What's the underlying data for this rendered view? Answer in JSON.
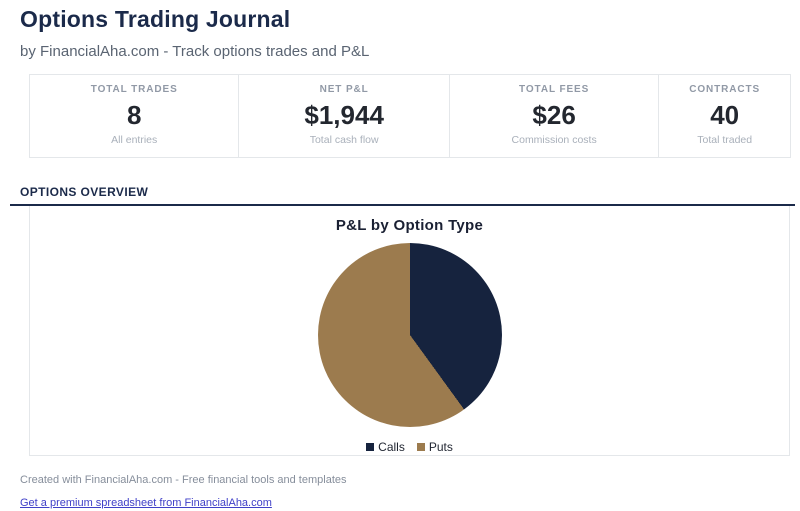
{
  "header": {
    "title": "Options Trading Journal",
    "subtitle": "by FinancialAha.com - Track options trades and P&L"
  },
  "stats": {
    "cards": [
      {
        "label": "TOTAL TRADES",
        "value": "8",
        "sub": "All entries"
      },
      {
        "label": "NET P&L",
        "value": "$1,944",
        "sub": "Total cash flow"
      },
      {
        "label": "TOTAL FEES",
        "value": "$26",
        "sub": "Commission costs"
      },
      {
        "label": "CONTRACTS",
        "value": "40",
        "sub": "Total traded"
      }
    ]
  },
  "section": {
    "title": "OPTIONS OVERVIEW"
  },
  "chart_data": {
    "type": "pie",
    "title": "P&L by Option Type",
    "categories": [
      "Calls",
      "Puts"
    ],
    "values": [
      40,
      60
    ],
    "colors": [
      "#16233e",
      "#9c7b4e"
    ],
    "legend_position": "bottom",
    "start_angle_deg": 0,
    "direction": "clockwise"
  },
  "footer": {
    "credit": "Created with FinancialAha.com - Free financial tools and templates",
    "link": "Get a premium spreadsheet from FinancialAha.com"
  },
  "colors": {
    "navy": "#1b2a4a",
    "link": "#4040c8",
    "border": "#e4e7ea"
  }
}
